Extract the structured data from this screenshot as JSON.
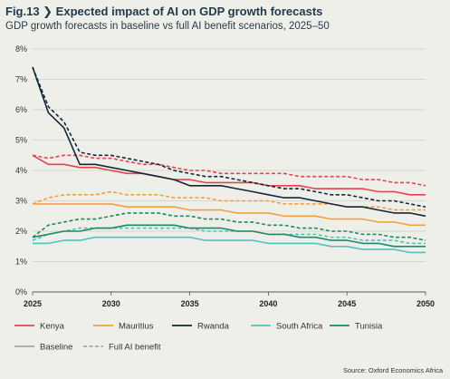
{
  "header": {
    "title": "Fig.13 ❯ Expected impact of AI on GDP growth forecasts",
    "subtitle": "GDP growth forecasts in baseline vs full AI benefit scenarios, 2025–50"
  },
  "source": "Source: Oxford Economics Africa",
  "chart_data": {
    "type": "line",
    "title": "Expected impact of AI on GDP growth forecasts",
    "subtitle": "GDP growth forecasts in baseline vs full AI benefit scenarios, 2025–50",
    "x": [
      2025,
      2026,
      2027,
      2028,
      2029,
      2030,
      2031,
      2032,
      2033,
      2034,
      2035,
      2036,
      2037,
      2038,
      2039,
      2040,
      2041,
      2042,
      2043,
      2044,
      2045,
      2046,
      2047,
      2048,
      2049,
      2050
    ],
    "xticks": [
      2025,
      2030,
      2035,
      2040,
      2045,
      2050
    ],
    "xlim": [
      2025,
      2050
    ],
    "ylim": [
      0,
      8
    ],
    "yticks": [
      0,
      1,
      2,
      3,
      4,
      5,
      6,
      7,
      8
    ],
    "ytick_suffix": "%",
    "grid": "horizontal",
    "legend_position": "bottom",
    "series": [
      {
        "name": "Kenya",
        "scenario": "Baseline",
        "color": "#e8424c",
        "values": [
          4.5,
          4.2,
          4.2,
          4.1,
          4.1,
          4.0,
          3.9,
          3.9,
          3.8,
          3.7,
          3.7,
          3.6,
          3.6,
          3.6,
          3.6,
          3.5,
          3.5,
          3.5,
          3.4,
          3.4,
          3.4,
          3.4,
          3.3,
          3.3,
          3.2,
          3.2
        ]
      },
      {
        "name": "Kenya",
        "scenario": "Full AI benefit",
        "color": "#e8424c",
        "values": [
          4.5,
          4.4,
          4.5,
          4.5,
          4.4,
          4.4,
          4.3,
          4.2,
          4.2,
          4.1,
          4.0,
          4.0,
          3.9,
          3.9,
          3.9,
          3.9,
          3.9,
          3.8,
          3.8,
          3.8,
          3.8,
          3.7,
          3.7,
          3.6,
          3.6,
          3.5
        ]
      },
      {
        "name": "Mauritius",
        "scenario": "Baseline",
        "color": "#f2a03c",
        "values": [
          2.9,
          2.9,
          2.9,
          2.9,
          2.9,
          2.9,
          2.8,
          2.8,
          2.8,
          2.8,
          2.7,
          2.7,
          2.7,
          2.6,
          2.6,
          2.6,
          2.5,
          2.5,
          2.5,
          2.4,
          2.4,
          2.4,
          2.3,
          2.3,
          2.2,
          2.2
        ]
      },
      {
        "name": "Mauritius",
        "scenario": "Full AI benefit",
        "color": "#f2a03c",
        "values": [
          2.9,
          3.1,
          3.2,
          3.2,
          3.2,
          3.3,
          3.2,
          3.2,
          3.2,
          3.1,
          3.1,
          3.1,
          3.0,
          3.0,
          3.0,
          3.0,
          2.9,
          2.9,
          2.9,
          2.9,
          2.8,
          2.8,
          2.8,
          2.7,
          2.7,
          2.7
        ]
      },
      {
        "name": "Rwanda",
        "scenario": "Baseline",
        "color": "#13283a",
        "values": [
          7.4,
          5.9,
          5.4,
          4.2,
          4.2,
          4.1,
          4.0,
          3.9,
          3.8,
          3.7,
          3.5,
          3.5,
          3.5,
          3.4,
          3.3,
          3.2,
          3.1,
          3.1,
          3.0,
          2.9,
          2.8,
          2.8,
          2.7,
          2.6,
          2.6,
          2.5
        ]
      },
      {
        "name": "Rwanda",
        "scenario": "Full AI benefit",
        "color": "#13283a",
        "values": [
          7.4,
          6.1,
          5.6,
          4.6,
          4.5,
          4.5,
          4.4,
          4.3,
          4.2,
          4.0,
          3.9,
          3.8,
          3.8,
          3.7,
          3.6,
          3.5,
          3.4,
          3.4,
          3.3,
          3.2,
          3.2,
          3.1,
          3.0,
          3.0,
          2.9,
          2.8
        ]
      },
      {
        "name": "South Africa",
        "scenario": "Baseline",
        "color": "#4fc3c1",
        "values": [
          1.6,
          1.6,
          1.7,
          1.7,
          1.8,
          1.8,
          1.8,
          1.8,
          1.8,
          1.8,
          1.8,
          1.7,
          1.7,
          1.7,
          1.7,
          1.6,
          1.6,
          1.6,
          1.6,
          1.5,
          1.5,
          1.4,
          1.4,
          1.4,
          1.3,
          1.3
        ]
      },
      {
        "name": "South Africa",
        "scenario": "Full AI benefit",
        "color": "#4fc3c1",
        "values": [
          1.7,
          1.9,
          2.0,
          2.1,
          2.1,
          2.1,
          2.1,
          2.1,
          2.1,
          2.1,
          2.1,
          2.0,
          2.0,
          2.0,
          2.0,
          1.9,
          1.9,
          1.9,
          1.9,
          1.8,
          1.8,
          1.7,
          1.7,
          1.7,
          1.6,
          1.6
        ]
      },
      {
        "name": "Tunisia",
        "scenario": "Baseline",
        "color": "#1b8a66",
        "values": [
          1.8,
          1.9,
          2.0,
          2.0,
          2.1,
          2.1,
          2.2,
          2.2,
          2.2,
          2.2,
          2.1,
          2.1,
          2.1,
          2.0,
          2.0,
          1.9,
          1.9,
          1.8,
          1.8,
          1.7,
          1.7,
          1.6,
          1.6,
          1.5,
          1.5,
          1.5
        ]
      },
      {
        "name": "Tunisia",
        "scenario": "Full AI benefit",
        "color": "#1b8a66",
        "values": [
          1.8,
          2.2,
          2.3,
          2.4,
          2.4,
          2.5,
          2.6,
          2.6,
          2.6,
          2.5,
          2.5,
          2.4,
          2.4,
          2.3,
          2.3,
          2.2,
          2.2,
          2.1,
          2.1,
          2.0,
          2.0,
          1.9,
          1.9,
          1.8,
          1.8,
          1.7
        ]
      }
    ],
    "legend": {
      "countries": [
        {
          "label": "Kenya",
          "color": "#e8424c"
        },
        {
          "label": "Mauritius",
          "color": "#f2a03c"
        },
        {
          "label": "Rwanda",
          "color": "#13283a"
        },
        {
          "label": "South Africa",
          "color": "#4fc3c1"
        },
        {
          "label": "Tunisia",
          "color": "#1b8a66"
        }
      ],
      "styles": [
        {
          "label": "Baseline",
          "dash": false,
          "color": "#9a9a9a"
        },
        {
          "label": "Full AI benefit",
          "dash": true,
          "color": "#9a9a9a"
        }
      ]
    }
  }
}
